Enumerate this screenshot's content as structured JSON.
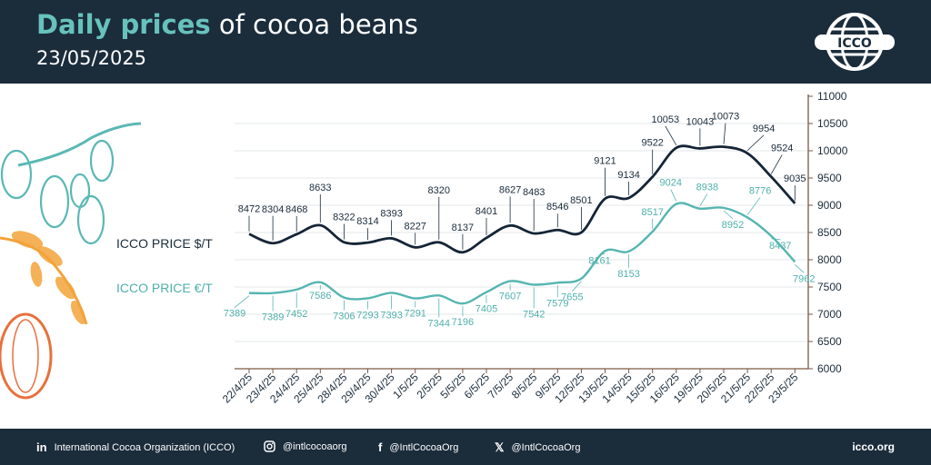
{
  "header": {
    "title_strong": "Daily prices",
    "title_rest": " of cocoa beans",
    "date": "23/05/2025",
    "logo_text": "ICCO"
  },
  "footer": {
    "linkedin": "International Cocoa Organization (ICCO)",
    "instagram": "@intlcocoaorg",
    "facebook": "@IntlCocoaOrg",
    "x": "@IntlCocoaOrg",
    "site": "icco.org"
  },
  "colors": {
    "navy": "#1b2c3b",
    "teal": "#67c2bd",
    "usd_line": "#152536",
    "eur_line": "#55b5b0",
    "decor_teal": "#5bb8b4",
    "decor_orange": "#f2a33a",
    "decor_red": "#e8703c"
  },
  "chart_data": {
    "type": "line",
    "categories": [
      "22/4/25",
      "23/4/25",
      "24/4/25",
      "25/4/25",
      "28/4/25",
      "29/4/25",
      "30/4/25",
      "1/5/25",
      "2/5/25",
      "5/5/25",
      "6/5/25",
      "7/5/25",
      "8/5/25",
      "9/5/25",
      "12/5/25",
      "13/5/25",
      "14/5/25",
      "15/5/25",
      "16/5/25",
      "19/5/25",
      "20/5/25",
      "21/5/25",
      "22/5/25",
      "23/5/25"
    ],
    "series": [
      {
        "name": "ICCO PRICE $/T",
        "values": [
          8472,
          8304,
          8468,
          8633,
          8322,
          8314,
          8393,
          8227,
          8320,
          8137,
          8401,
          8627,
          8483,
          8546,
          8501,
          9121,
          9134,
          9522,
          10053,
          10043,
          10073,
          9954,
          9524,
          9035
        ]
      },
      {
        "name": "ICCO PRICE €/T",
        "values": [
          7389,
          7389,
          7452,
          7586,
          7306,
          7293,
          7393,
          7291,
          7344,
          7196,
          7405,
          7607,
          7542,
          7579,
          7655,
          8161,
          8153,
          8517,
          9024,
          8938,
          8952,
          8776,
          8437,
          7962
        ]
      }
    ],
    "ylim": [
      6000,
      11000
    ],
    "yticks": [
      6000,
      6500,
      7000,
      7500,
      8000,
      8500,
      9000,
      9500,
      10000,
      10500,
      11000
    ],
    "title": "Daily prices of cocoa beans",
    "xlabel": "",
    "ylabel": ""
  }
}
